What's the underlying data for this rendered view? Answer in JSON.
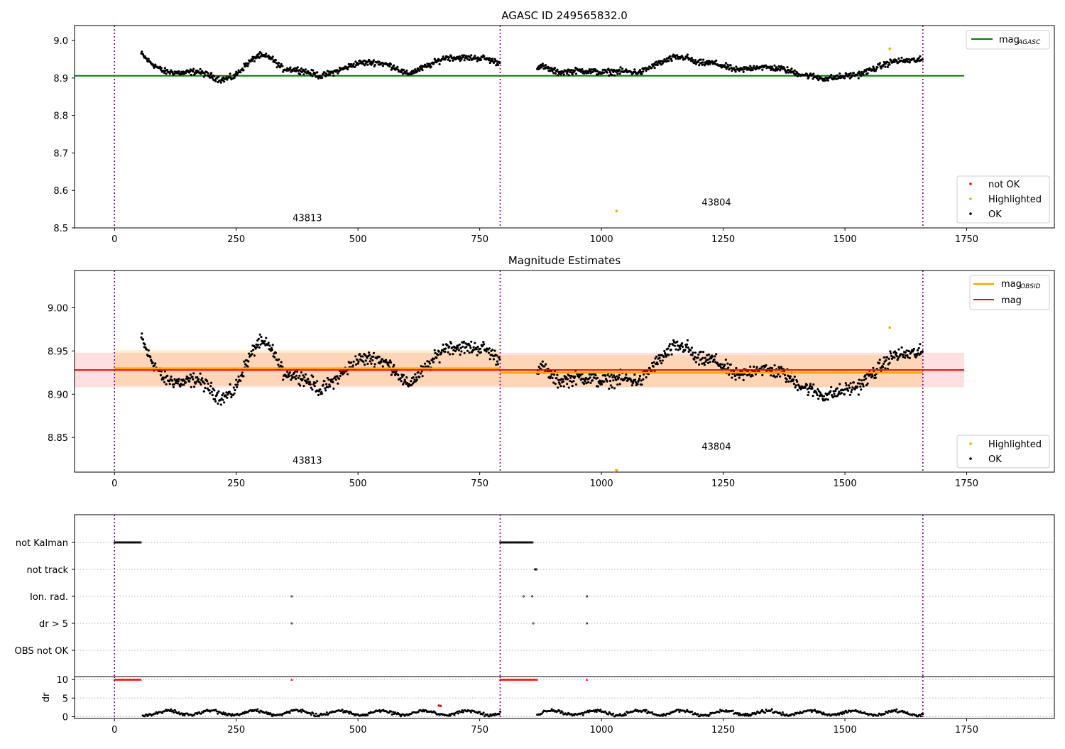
{
  "chart_data": [
    {
      "type": "scatter",
      "title": "AGASC ID 249565832.0",
      "xlim": [
        -82,
        1930
      ],
      "ylim": [
        8.5,
        9.04
      ],
      "xticks": [
        0,
        250,
        500,
        750,
        1000,
        1250,
        1500,
        1750
      ],
      "yticks": [
        8.5,
        8.6,
        8.7,
        8.8,
        8.9,
        9.0
      ],
      "ytick_labels": [
        "8.5",
        "8.6",
        "8.7",
        "8.8",
        "8.9",
        "9.0"
      ],
      "obsid_boundaries": [
        0,
        792,
        1660
      ],
      "obsid_labels": [
        {
          "text": "43813",
          "x": 396,
          "y": 8.518
        },
        {
          "text": "43804",
          "x": 1236,
          "y": 8.56
        }
      ],
      "reference_lines": [
        {
          "name": "mag_AGASC",
          "value": 8.906,
          "x_range": [
            -82,
            1745
          ],
          "color": "#008000"
        }
      ],
      "series": [
        {
          "name": "not OK",
          "color": "#ff0000"
        },
        {
          "name": "Highlighted",
          "color": "#ffa500",
          "points": [
            [
              1031,
              8.545
            ],
            [
              1592,
              8.978
            ]
          ]
        },
        {
          "name": "OK",
          "color": "#000000"
        }
      ],
      "legend_upper": {
        "main": "mag",
        "sub": "AGASC",
        "placement": "top-right"
      },
      "legend_lower": {
        "entries": [
          "not OK",
          "Highlighted",
          "OK"
        ],
        "placement": "bottom-right"
      }
    },
    {
      "type": "scatter",
      "title": "Magnitude Estimates",
      "xlim": [
        -82,
        1930
      ],
      "ylim": [
        8.81,
        9.043
      ],
      "xticks": [
        0,
        250,
        500,
        750,
        1000,
        1250,
        1500,
        1750
      ],
      "yticks": [
        8.85,
        8.9,
        8.95,
        9.0
      ],
      "ytick_labels": [
        "8.85",
        "8.90",
        "8.95",
        "9.00"
      ],
      "obsid_boundaries": [
        0,
        792,
        1660
      ],
      "obsid_labels": [
        {
          "text": "43813",
          "x": 396,
          "y": 8.82
        },
        {
          "text": "43804",
          "x": 1236,
          "y": 8.836
        }
      ],
      "reference_lines": [
        {
          "name": "mag",
          "value": 8.928,
          "band": [
            8.908,
            8.948
          ],
          "x_range": [
            -82,
            1745
          ],
          "color": "#ff0000"
        },
        {
          "name": "mag_OBSID",
          "segments": [
            {
              "x_range": [
                0,
                792
              ],
              "value": 8.93,
              "band": [
                8.91,
                8.951
              ]
            },
            {
              "x_range": [
                792,
                1660
              ],
              "value": 8.925,
              "band": [
                8.908,
                8.945
              ]
            }
          ],
          "color": "#ffa500"
        }
      ],
      "series": [
        {
          "name": "Highlighted",
          "color": "#ffa500",
          "points": [
            [
              1031,
              8.81
            ],
            [
              1592,
              8.977
            ]
          ]
        },
        {
          "name": "OK",
          "color": "#000000"
        }
      ],
      "legend_upper": {
        "entries": [
          {
            "main": "mag",
            "sub": "OBSID"
          },
          {
            "main": "mag",
            "sub": ""
          }
        ],
        "placement": "top-right"
      },
      "legend_lower": {
        "entries": [
          "Highlighted",
          "OK"
        ],
        "placement": "bottom-right"
      }
    },
    {
      "type": "scatter",
      "title": "",
      "xlim": [
        -82,
        1930
      ],
      "flag_rows": [
        "not Kalman",
        "not track",
        "Ion. rad.",
        "dr > 5",
        "OBS not OK"
      ],
      "flag_points": {
        "not Kalman": [
          [
            0,
            55
          ],
          [
            792,
            860
          ]
        ],
        "not track": [
          [
            863,
            868
          ]
        ],
        "Ion. rad.": [
          364,
          840,
          858,
          970
        ],
        "dr > 5": [
          364,
          860,
          970
        ],
        "OBS not OK": []
      },
      "obsid_boundaries": [
        0,
        792,
        1660
      ]
    },
    {
      "type": "scatter",
      "title": "",
      "ylabel": "dr",
      "xlim": [
        -82,
        1930
      ],
      "ylim": [
        -0.5,
        10.8
      ],
      "xticks": [
        0,
        250,
        500,
        750,
        1000,
        1250,
        1500,
        1750
      ],
      "yticks": [
        0,
        5,
        10
      ],
      "ytick_labels": [
        "0",
        "5",
        "10"
      ],
      "clipped_ranges": [
        [
          0,
          55
        ],
        [
          792,
          868
        ]
      ],
      "clipped_points": [
        364,
        970
      ],
      "clip_value": 10,
      "obsid_boundaries": [
        0,
        792,
        1660
      ]
    }
  ]
}
